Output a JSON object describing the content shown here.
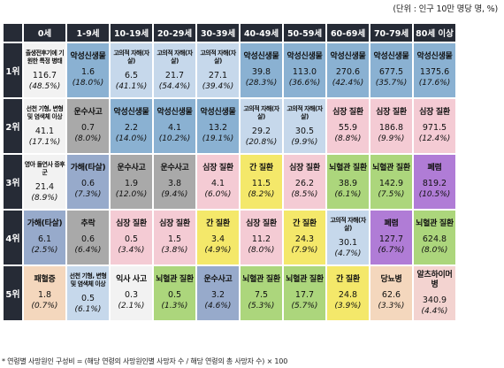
{
  "unit_note": "(단위 : 인구 10만 명당 명, %)",
  "footnote": "* 연령별 사망원인 구성비 = (해당 연령의 사망원인별 사망자 수 / 해당 연령의 총 사망자 수) × 100",
  "age_groups": [
    "0세",
    "1-9세",
    "10-19세",
    "20-29세",
    "30-39세",
    "40-49세",
    "50-59세",
    "60-69세",
    "70-79세",
    "80세 이상"
  ],
  "ranks": [
    {
      "label": "1위",
      "cells": [
        {
          "name": "출생전후기에 기원한 특정 병태",
          "value": "116.7",
          "pct": "(48.5%)",
          "cat": "infant"
        },
        {
          "name": "악성신생물",
          "value": "1.6",
          "pct": "(18.0%)",
          "cat": "cancer"
        },
        {
          "name": "고의적 자해(자살)",
          "value": "6.5",
          "pct": "(41.1%)",
          "cat": "suicide"
        },
        {
          "name": "고의적 자해(자살)",
          "value": "21.7",
          "pct": "(54.4%)",
          "cat": "suicide"
        },
        {
          "name": "고의적 자해(자살)",
          "value": "27.1",
          "pct": "(39.4%)",
          "cat": "suicide"
        },
        {
          "name": "악성신생물",
          "value": "39.8",
          "pct": "(28.3%)",
          "cat": "cancer"
        },
        {
          "name": "악성신생물",
          "value": "113.0",
          "pct": "(36.6%)",
          "cat": "cancer"
        },
        {
          "name": "악성신생물",
          "value": "270.6",
          "pct": "(42.4%)",
          "cat": "cancer"
        },
        {
          "name": "악성신생물",
          "value": "677.5",
          "pct": "(35.7%)",
          "cat": "cancer"
        },
        {
          "name": "악성신생물",
          "value": "1375.6",
          "pct": "(17.6%)",
          "cat": "cancer"
        }
      ]
    },
    {
      "label": "2위",
      "cells": [
        {
          "name": "선천 기형, 변형 및 염색체 이상",
          "value": "41.1",
          "pct": "(17.1%)",
          "cat": "infant"
        },
        {
          "name": "운수사고",
          "value": "0.7",
          "pct": "(8.0%)",
          "cat": "accident"
        },
        {
          "name": "악성신생물",
          "value": "2.2",
          "pct": "(14.0%)",
          "cat": "cancer"
        },
        {
          "name": "악성신생물",
          "value": "4.1",
          "pct": "(10.2%)",
          "cat": "cancer"
        },
        {
          "name": "악성신생물",
          "value": "13.2",
          "pct": "(19.1%)",
          "cat": "cancer"
        },
        {
          "name": "고의적 자해(자살)",
          "value": "29.2",
          "pct": "(20.8%)",
          "cat": "suicide"
        },
        {
          "name": "고의적 자해(자살)",
          "value": "30.5",
          "pct": "(9.9%)",
          "cat": "suicide"
        },
        {
          "name": "심장 질환",
          "value": "55.9",
          "pct": "(8.8%)",
          "cat": "heart"
        },
        {
          "name": "심장 질환",
          "value": "186.8",
          "pct": "(9.9%)",
          "cat": "heart"
        },
        {
          "name": "심장 질환",
          "value": "971.5",
          "pct": "(12.4%)",
          "cat": "heart"
        }
      ]
    },
    {
      "label": "3위",
      "cells": [
        {
          "name": "영아 돌연사 증후군",
          "value": "21.4",
          "pct": "(8.9%)",
          "cat": "infant"
        },
        {
          "name": "가해(타살)",
          "value": "0.6",
          "pct": "(7.3%)",
          "cat": "homicide"
        },
        {
          "name": "운수사고",
          "value": "1.9",
          "pct": "(12.0%)",
          "cat": "accident"
        },
        {
          "name": "운수사고",
          "value": "3.8",
          "pct": "(9.4%)",
          "cat": "accident"
        },
        {
          "name": "심장 질환",
          "value": "4.1",
          "pct": "(6.0%)",
          "cat": "heart"
        },
        {
          "name": "간 질환",
          "value": "11.5",
          "pct": "(8.2%)",
          "cat": "liver"
        },
        {
          "name": "심장 질환",
          "value": "26.2",
          "pct": "(8.5%)",
          "cat": "heart"
        },
        {
          "name": "뇌혈관 질환",
          "value": "38.9",
          "pct": "(6.1%)",
          "cat": "stroke"
        },
        {
          "name": "뇌혈관 질환",
          "value": "142.9",
          "pct": "(7.5%)",
          "cat": "stroke"
        },
        {
          "name": "폐렴",
          "value": "819.2",
          "pct": "(10.5%)",
          "cat": "pneumonia"
        }
      ]
    },
    {
      "label": "4위",
      "cells": [
        {
          "name": "가해(타살)",
          "value": "6.1",
          "pct": "(2.5%)",
          "cat": "homicide"
        },
        {
          "name": "추락",
          "value": "0.6",
          "pct": "(6.4%)",
          "cat": "accident"
        },
        {
          "name": "심장 질환",
          "value": "0.5",
          "pct": "(3.4%)",
          "cat": "heart"
        },
        {
          "name": "심장 질환",
          "value": "1.5",
          "pct": "(3.8%)",
          "cat": "heart"
        },
        {
          "name": "간 질환",
          "value": "3.4",
          "pct": "(4.9%)",
          "cat": "liver"
        },
        {
          "name": "심장 질환",
          "value": "11.2",
          "pct": "(8.0%)",
          "cat": "heart"
        },
        {
          "name": "간 질환",
          "value": "24.3",
          "pct": "(7.9%)",
          "cat": "liver"
        },
        {
          "name": "고의적 자해(자살)",
          "value": "30.1",
          "pct": "(4.7%)",
          "cat": "suicide"
        },
        {
          "name": "폐렴",
          "value": "127.7",
          "pct": "(6.7%)",
          "cat": "pneumonia"
        },
        {
          "name": "뇌혈관 질환",
          "value": "624.8",
          "pct": "(8.0%)",
          "cat": "stroke"
        }
      ]
    },
    {
      "label": "5위",
      "cells": [
        {
          "name": "패혈증",
          "value": "1.8",
          "pct": "(0.7%)",
          "cat": "diabetes"
        },
        {
          "name": "선천 기형, 변형 및 염색체 이상",
          "value": "0.5",
          "pct": "(6.1%)",
          "cat": "suicide"
        },
        {
          "name": "익사 사고",
          "value": "0.3",
          "pct": "(2.1%)",
          "cat": "infant"
        },
        {
          "name": "뇌혈관 질환",
          "value": "0.5",
          "pct": "(1.3%)",
          "cat": "stroke"
        },
        {
          "name": "운수사고",
          "value": "3.2",
          "pct": "(4.6%)",
          "cat": "homicide"
        },
        {
          "name": "뇌혈관 질환",
          "value": "7.5",
          "pct": "(5.3%)",
          "cat": "stroke"
        },
        {
          "name": "뇌혈관 질환",
          "value": "17.7",
          "pct": "(5.7%)",
          "cat": "stroke"
        },
        {
          "name": "간 질환",
          "value": "24.8",
          "pct": "(3.9%)",
          "cat": "liver"
        },
        {
          "name": "당뇨병",
          "value": "62.6",
          "pct": "(3.3%)",
          "cat": "diabetes"
        },
        {
          "name": "알츠하이머병",
          "value": "340.9",
          "pct": "(4.4%)",
          "cat": "alz"
        }
      ]
    }
  ],
  "colors": {
    "header_bg": "#262b36",
    "infant": "#f2f2f2",
    "cancer": "#8ab1d2",
    "suicide": "#c6d8eb",
    "accident": "#a9a9a9",
    "heart": "#f4cbd4",
    "liver": "#f4e86a",
    "stroke": "#acd67c",
    "pneumonia": "#b07cd6",
    "homicide": "#97aacb",
    "diabetes": "#f4d7bd",
    "alz": "#f3d3d0"
  }
}
